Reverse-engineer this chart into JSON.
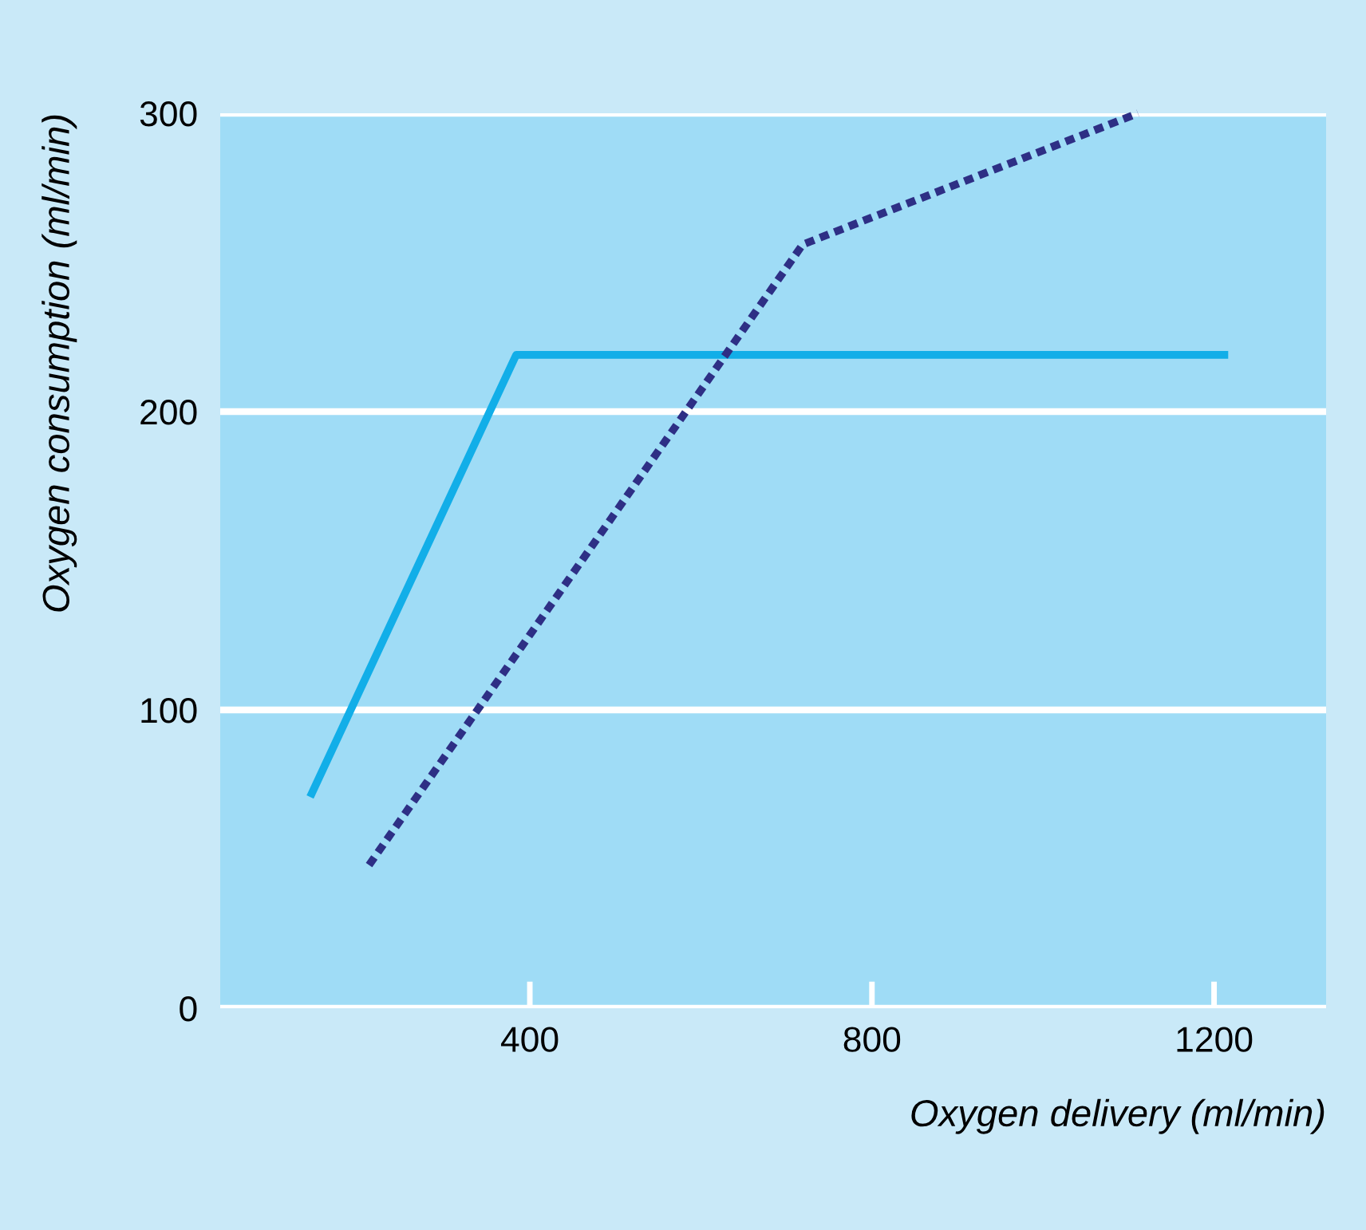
{
  "chart_data": {
    "type": "line",
    "xlabel": "Oxygen delivery (ml/min)",
    "ylabel": "Oxygen consumption (ml/min)",
    "xlim": [
      38,
      1331
    ],
    "ylim": [
      0,
      300
    ],
    "xticks": [
      400,
      800,
      1200
    ],
    "yticks": [
      0,
      100,
      200,
      300
    ],
    "grid": "y",
    "legend": false,
    "series": [
      {
        "color": "#12aee8",
        "line_style": "solid",
        "x": [
          145,
          384,
          1212
        ],
        "values": [
          72,
          219,
          219
        ]
      },
      {
        "color": "#2e2f85",
        "line_style": "dotted",
        "x": [
          212,
          719,
          1111
        ],
        "values": [
          48,
          256,
          300
        ]
      }
    ]
  }
}
